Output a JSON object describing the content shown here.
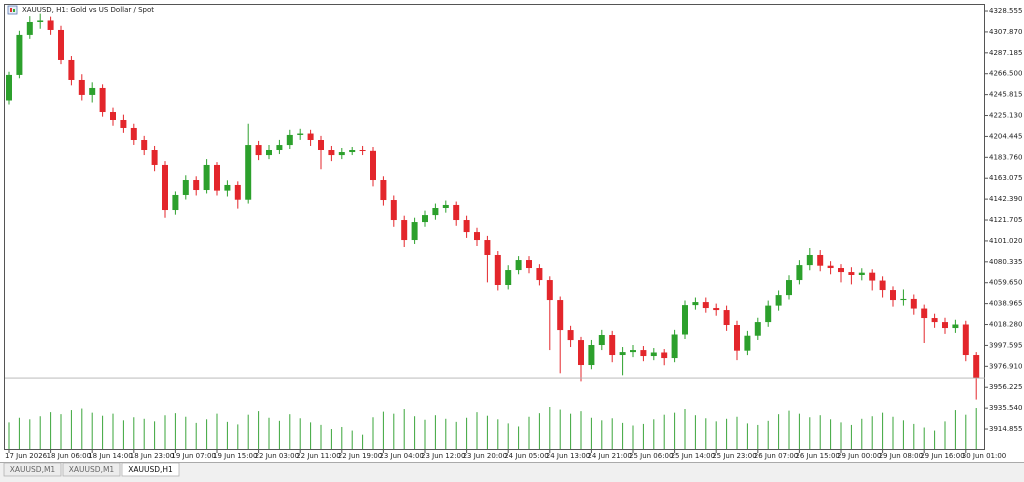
{
  "chart_data": {
    "type": "candlestick",
    "title": "XAUUSD, H1:  Gold vs US Dollar / Spot",
    "up_color": "#2ca02c",
    "down_color": "#e3262b",
    "volume_color": "#3aa53a",
    "categories": [
      "17 Jun 2026",
      null,
      null,
      null,
      "18 Jun 06:00",
      null,
      null,
      null,
      "18 Jun 14:00",
      null,
      null,
      null,
      "18 Jun 23:00",
      null,
      null,
      null,
      "19 Jun 07:00",
      null,
      null,
      null,
      "19 Jun 15:00",
      null,
      null,
      null,
      "22 Jun 03:00",
      null,
      null,
      null,
      "22 Jun 11:00",
      null,
      null,
      null,
      "22 Jun 19:00",
      null,
      null,
      null,
      "23 Jun 04:00",
      null,
      null,
      null,
      "23 Jun 12:00",
      null,
      null,
      null,
      "23 Jun 20:00",
      null,
      null,
      null,
      "24 Jun 05:00",
      null,
      null,
      null,
      "24 Jun 13:00",
      null,
      null,
      null,
      "24 Jun 21:00",
      null,
      null,
      null,
      "25 Jun 06:00",
      null,
      null,
      null,
      "25 Jun 14:00",
      null,
      null,
      null,
      "25 Jun 23:00",
      null,
      null,
      null,
      "26 Jun 07:00",
      null,
      null,
      null,
      "26 Jun 15:00",
      null,
      null,
      null,
      "29 Jun 00:00",
      null,
      null,
      null,
      "29 Jun 08:00",
      null,
      null,
      null,
      "29 Jun 16:00",
      null,
      null,
      null,
      "30 Jun 01:00",
      null
    ],
    "open": [
      4240,
      4265.3,
      4304.9,
      4317.7,
      4319.2,
      4309.8,
      4280.1,
      4260.3,
      4245.5,
      4252.4,
      4228.6,
      4220.7,
      4212.8,
      4200.9,
      4191.0,
      4176.2,
      4131.6,
      4146.5,
      4161.3,
      4151.4,
      4176.2,
      4150.8,
      4156.4,
      4141.8,
      4195.9,
      4186.0,
      4191.0,
      4195.9,
      4205.9,
      4207.3,
      4200.9,
      4191.0,
      4186.0,
      4189.0,
      4191.0,
      4190.2,
      4161.3,
      4141.5,
      4121.7,
      4101.9,
      4119.7,
      4126.6,
      4133.6,
      4136.6,
      4121.7,
      4109.8,
      4101.9,
      4087.1,
      4057.4,
      4072.2,
      4082.1,
      4074.2,
      4062.3,
      4042.5,
      4012.8,
      4002.9,
      3978.2,
      3998.0,
      4007.9,
      3988.1,
      3991.0,
      3993.0,
      3987.1,
      3990.6,
      3985.1,
      4008.4,
      4037.5,
      4040.5,
      4034.6,
      4032.6,
      4017.8,
      3992.4,
      4007.2,
      4020.7,
      4037.0,
      4047.4,
      4062.3,
      4077.1,
      4087.1,
      4076.5,
      4074.2,
      4070.2,
      4067.3,
      4069.6,
      4061.8,
      4052.4,
      4042.5,
      4043.6,
      4034.1,
      4024.7,
      4020.7,
      4014.8,
      4018.3,
      3988.1
    ],
    "high": [
      4268.5,
      4309,
      4323.5,
      4326,
      4323,
      4314,
      4284,
      4266,
      4258,
      4256,
      4233,
      4226,
      4217,
      4205,
      4195,
      4180,
      4150,
      4166,
      4165,
      4182,
      4179,
      4161,
      4160,
      4217,
      4200,
      4196,
      4201,
      4211,
      4212,
      4211,
      4205,
      4195,
      4193,
      4194,
      4195,
      4194,
      4165,
      4146,
      4126,
      4124,
      4131,
      4138,
      4141,
      4140,
      4126,
      4114,
      4106,
      4091,
      4077,
      4086,
      4086,
      4078,
      4066,
      4046,
      4017,
      4006,
      4003,
      4013,
      4012,
      3996,
      3998,
      3997,
      3995,
      3994,
      4013,
      4042,
      4045,
      4045,
      4039,
      4037,
      4022,
      4012,
      4025,
      4042,
      4052,
      4067,
      4082,
      4094,
      4092,
      4081,
      4078,
      4075,
      4074,
      4073,
      4066,
      4056,
      4053,
      4048,
      4038,
      4029,
      4025,
      4023,
      4022,
      3991
    ],
    "low": [
      4236,
      4262,
      4301,
      4311,
      4305,
      4276,
      4255,
      4240,
      4238,
      4224,
      4215,
      4208,
      4196,
      4186,
      4170,
      4124,
      4127,
      4142,
      4146,
      4148,
      4146,
      4145,
      4133,
      4138,
      4181,
      4182,
      4187,
      4192,
      4201,
      4195,
      4172,
      4180,
      4182,
      4186,
      4186,
      4155,
      4136,
      4115,
      4095,
      4098,
      4115,
      4122,
      4129,
      4116,
      4104,
      4096,
      4060,
      4052,
      4053,
      4068,
      4069,
      4057,
      3993,
      3970,
      3996,
      3962,
      3974,
      3993,
      3981,
      3968,
      3986,
      3982,
      3983,
      3978,
      3981,
      4004,
      4033,
      4030,
      4027,
      4012,
      3983,
      3988,
      4003,
      4016,
      4032,
      4043,
      4058,
      4072,
      4071,
      4068,
      4060,
      4058,
      4062,
      4052,
      4045,
      4036,
      4037,
      4028,
      4000,
      4015,
      4009,
      4010,
      3982,
      3944
    ],
    "close": [
      4265.3,
      4304.9,
      4317.7,
      4319.2,
      4309.8,
      4280.1,
      4260.3,
      4245.5,
      4252.4,
      4228.6,
      4220.7,
      4212.8,
      4200.9,
      4191.0,
      4176.2,
      4131.6,
      4146.5,
      4161.3,
      4151.4,
      4176.2,
      4150.8,
      4156.4,
      4141.8,
      4195.9,
      4186.0,
      4191.0,
      4195.9,
      4205.9,
      4207.3,
      4200.9,
      4191.0,
      4186.0,
      4189.0,
      4191.0,
      4190.2,
      4161.3,
      4141.5,
      4121.7,
      4101.9,
      4119.7,
      4126.6,
      4133.6,
      4136.6,
      4121.7,
      4109.8,
      4101.9,
      4087.1,
      4057.4,
      4072.2,
      4082.1,
      4074.2,
      4062.3,
      4042.5,
      4012.8,
      4002.9,
      3978.2,
      3998.0,
      4007.9,
      3988.1,
      3991.0,
      3993.0,
      3987.1,
      3990.6,
      3985.1,
      4008.4,
      4037.5,
      4040.5,
      4034.6,
      4032.6,
      4017.8,
      3992.4,
      4007.2,
      4020.7,
      4037.0,
      4047.4,
      4062.3,
      4077.1,
      4087.1,
      4076.5,
      4074.2,
      4070.2,
      4067.3,
      4069.6,
      4061.8,
      4052.4,
      4042.5,
      4043.6,
      4034.1,
      4024.7,
      4020.7,
      4014.8,
      4018.3,
      3988.1,
      3965.3
    ],
    "volume": [
      5200,
      6100,
      5800,
      6400,
      7200,
      6800,
      7600,
      7900,
      7100,
      6500,
      6900,
      5600,
      6200,
      5900,
      5400,
      6600,
      7000,
      6300,
      5100,
      5800,
      6900,
      5300,
      4800,
      6700,
      7400,
      6100,
      5500,
      6800,
      6000,
      5200,
      4700,
      3900,
      4300,
      3600,
      2800,
      6200,
      7300,
      6900,
      7800,
      6400,
      5700,
      6600,
      5900,
      5300,
      6100,
      7200,
      6500,
      5800,
      5000,
      4400,
      6300,
      7000,
      8200,
      7700,
      6900,
      7400,
      6100,
      5600,
      6000,
      5100,
      4600,
      4900,
      5800,
      6700,
      7100,
      7800,
      6600,
      6000,
      5400,
      5900,
      6300,
      5000,
      4700,
      5500,
      6800,
      7500,
      6900,
      6200,
      6600,
      5800,
      5200,
      4700,
      5900,
      6400,
      7100,
      6300,
      5600,
      4900,
      4200,
      3600,
      5400,
      7600,
      6700,
      8000
    ],
    "ylim": [
      3894.1,
      4335.5
    ],
    "yticks": [
      4328.555,
      {
        "value": 4307.87,
        "label": "4307.870"
      },
      4287.185,
      {
        "value": 4266.5,
        "label": "4266.500"
      },
      4245.815,
      {
        "value": 4225.13,
        "label": "4225.130"
      },
      4204.445,
      {
        "value": 4183.76,
        "label": "4183.760"
      },
      4163.075,
      {
        "value": 4142.39,
        "label": "4142.390"
      },
      4121.705,
      {
        "value": 4101.02,
        "label": "4101.020"
      },
      4080.335,
      {
        "value": 4059.65,
        "label": "4059.650"
      },
      4038.965,
      {
        "value": 4018.28,
        "label": "4018.280"
      },
      3997.595,
      {
        "value": 3976.91,
        "label": "3976.910"
      },
      3956.225,
      {
        "value": 3935.54,
        "label": "3935.540"
      },
      3914.855
    ]
  },
  "tabs": [
    "XAUUSD,M1",
    "XAUUSD,M1",
    "XAUUSD,H1"
  ]
}
